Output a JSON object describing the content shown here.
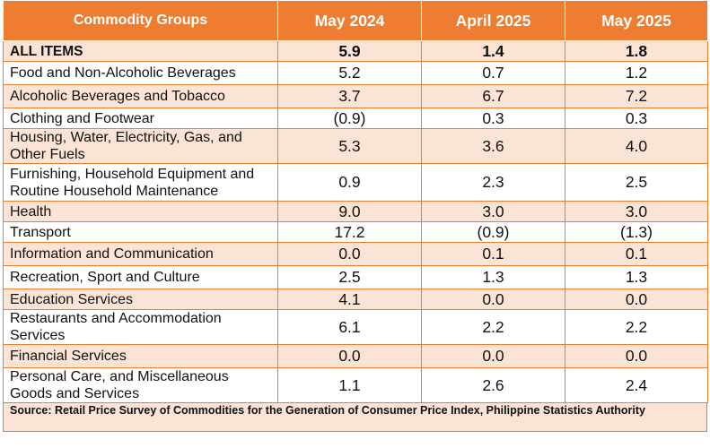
{
  "table": {
    "headers": [
      "Commodity Groups",
      "May 2024",
      "April 2025",
      "May 2025"
    ],
    "rows": [
      {
        "label": "ALL ITEMS",
        "v1": "5.9",
        "v2": "1.4",
        "v3": "1.8"
      },
      {
        "label": "Food and Non-Alcoholic Beverages",
        "v1": "5.2",
        "v2": "0.7",
        "v3": "1.2"
      },
      {
        "label": "Alcoholic Beverages and Tobacco",
        "v1": "3.7",
        "v2": "6.7",
        "v3": "7.2"
      },
      {
        "label": "Clothing and Footwear",
        "v1": "(0.9)",
        "v2": "0.3",
        "v3": "0.3"
      },
      {
        "label": "Housing, Water, Electricity, Gas, and Other Fuels",
        "v1": "5.3",
        "v2": "3.6",
        "v3": "4.0"
      },
      {
        "label": "Furnishing, Household Equipment and Routine Household Maintenance",
        "v1": "0.9",
        "v2": "2.3",
        "v3": "2.5"
      },
      {
        "label": "Health",
        "v1": "9.0",
        "v2": "3.0",
        "v3": "3.0"
      },
      {
        "label": "Transport",
        "v1": "17.2",
        "v2": "(0.9)",
        "v3": "(1.3)"
      },
      {
        "label": "Information and Communication",
        "v1": "0.0",
        "v2": "0.1",
        "v3": "0.1"
      },
      {
        "label": "Recreation, Sport and Culture",
        "v1": "2.5",
        "v2": "1.3",
        "v3": "1.3"
      },
      {
        "label": "Education Services",
        "v1": "4.1",
        "v2": "0.0",
        "v3": "0.0"
      },
      {
        "label": "Restaurants and Accommodation Services",
        "v1": "6.1",
        "v2": "2.2",
        "v3": "2.2"
      },
      {
        "label": "Financial Services",
        "v1": "0.0",
        "v2": "0.0",
        "v3": "0.0"
      },
      {
        "label": "Personal Care, and Miscellaneous Goods and Services",
        "v1": "1.1",
        "v2": "2.6",
        "v3": "2.4"
      }
    ],
    "source": "Source: Retail Price Survey of Commodities for the Generation of Consumer Price Index, Philippine Statistics Authority"
  },
  "colors": {
    "header_bg": "#ee7d31",
    "band_bg": "#fbe3d5",
    "border": "#ee7d31"
  }
}
